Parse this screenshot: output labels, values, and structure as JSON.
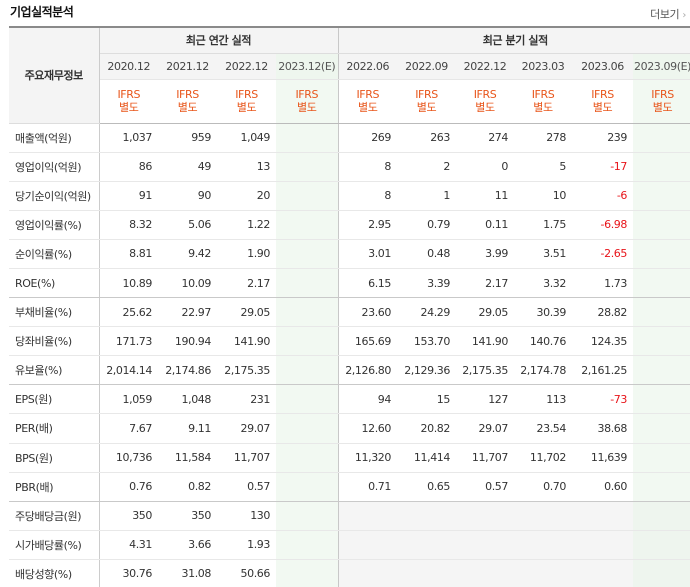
{
  "header": {
    "title": "기업실적분석",
    "more_label": "더보기"
  },
  "table": {
    "row_header": "주요재무정보",
    "group_annual": "최근 연간 실적",
    "group_quarter": "최근 분기 실적",
    "annual_periods": [
      "2020.12",
      "2021.12",
      "2022.12",
      "2023.12(E)"
    ],
    "quarter_periods": [
      "2022.06",
      "2022.09",
      "2022.12",
      "2023.03",
      "2023.06",
      "2023.09(E)"
    ],
    "std_line1": "IFRS",
    "std_line2": "별도",
    "rows": [
      {
        "label": "매출액(억원)",
        "values": [
          "1,037",
          "959",
          "1,049",
          "",
          "269",
          "263",
          "274",
          "278",
          "239",
          ""
        ]
      },
      {
        "label": "영업이익(억원)",
        "values": [
          "86",
          "49",
          "13",
          "",
          "8",
          "2",
          "0",
          "5",
          "-17",
          ""
        ]
      },
      {
        "label": "당기순이익(억원)",
        "values": [
          "91",
          "90",
          "20",
          "",
          "8",
          "1",
          "11",
          "10",
          "-6",
          ""
        ]
      },
      {
        "label": "영업이익률(%)",
        "values": [
          "8.32",
          "5.06",
          "1.22",
          "",
          "2.95",
          "0.79",
          "0.11",
          "1.75",
          "-6.98",
          ""
        ]
      },
      {
        "label": "순이익률(%)",
        "values": [
          "8.81",
          "9.42",
          "1.90",
          "",
          "3.01",
          "0.48",
          "3.99",
          "3.51",
          "-2.65",
          ""
        ]
      },
      {
        "label": "ROE(%)",
        "values": [
          "10.89",
          "10.09",
          "2.17",
          "",
          "6.15",
          "3.39",
          "2.17",
          "3.32",
          "1.73",
          ""
        ]
      },
      {
        "label": "부채비율(%)",
        "values": [
          "25.62",
          "22.97",
          "29.05",
          "",
          "23.60",
          "24.29",
          "29.05",
          "30.39",
          "28.82",
          ""
        ]
      },
      {
        "label": "당좌비율(%)",
        "values": [
          "171.73",
          "190.94",
          "141.90",
          "",
          "165.69",
          "153.70",
          "141.90",
          "140.76",
          "124.35",
          ""
        ]
      },
      {
        "label": "유보율(%)",
        "values": [
          "2,014.14",
          "2,174.86",
          "2,175.35",
          "",
          "2,126.80",
          "2,129.36",
          "2,175.35",
          "2,174.78",
          "2,161.25",
          ""
        ]
      },
      {
        "label": "EPS(원)",
        "values": [
          "1,059",
          "1,048",
          "231",
          "",
          "94",
          "15",
          "127",
          "113",
          "-73",
          ""
        ]
      },
      {
        "label": "PER(배)",
        "values": [
          "7.67",
          "9.11",
          "29.07",
          "",
          "12.60",
          "20.82",
          "29.07",
          "23.54",
          "38.68",
          ""
        ]
      },
      {
        "label": "BPS(원)",
        "values": [
          "10,736",
          "11,584",
          "11,707",
          "",
          "11,320",
          "11,414",
          "11,707",
          "11,702",
          "11,639",
          ""
        ]
      },
      {
        "label": "PBR(배)",
        "values": [
          "0.76",
          "0.82",
          "0.57",
          "",
          "0.71",
          "0.65",
          "0.57",
          "0.70",
          "0.60",
          ""
        ]
      },
      {
        "label": "주당배당금(원)",
        "values": [
          "350",
          "350",
          "130",
          "",
          "",
          "",
          "",
          "",
          "",
          ""
        ]
      },
      {
        "label": "시가배당률(%)",
        "values": [
          "4.31",
          "3.66",
          "1.93",
          "",
          "",
          "",
          "",
          "",
          "",
          ""
        ]
      },
      {
        "label": "배당성향(%)",
        "values": [
          "30.76",
          "31.08",
          "50.66",
          "",
          "",
          "",
          "",
          "",
          "",
          ""
        ]
      }
    ]
  },
  "colors": {
    "negative": "#e8141a",
    "standard_label": "#e8551a",
    "estimate_bg": "#f2f9f2"
  }
}
